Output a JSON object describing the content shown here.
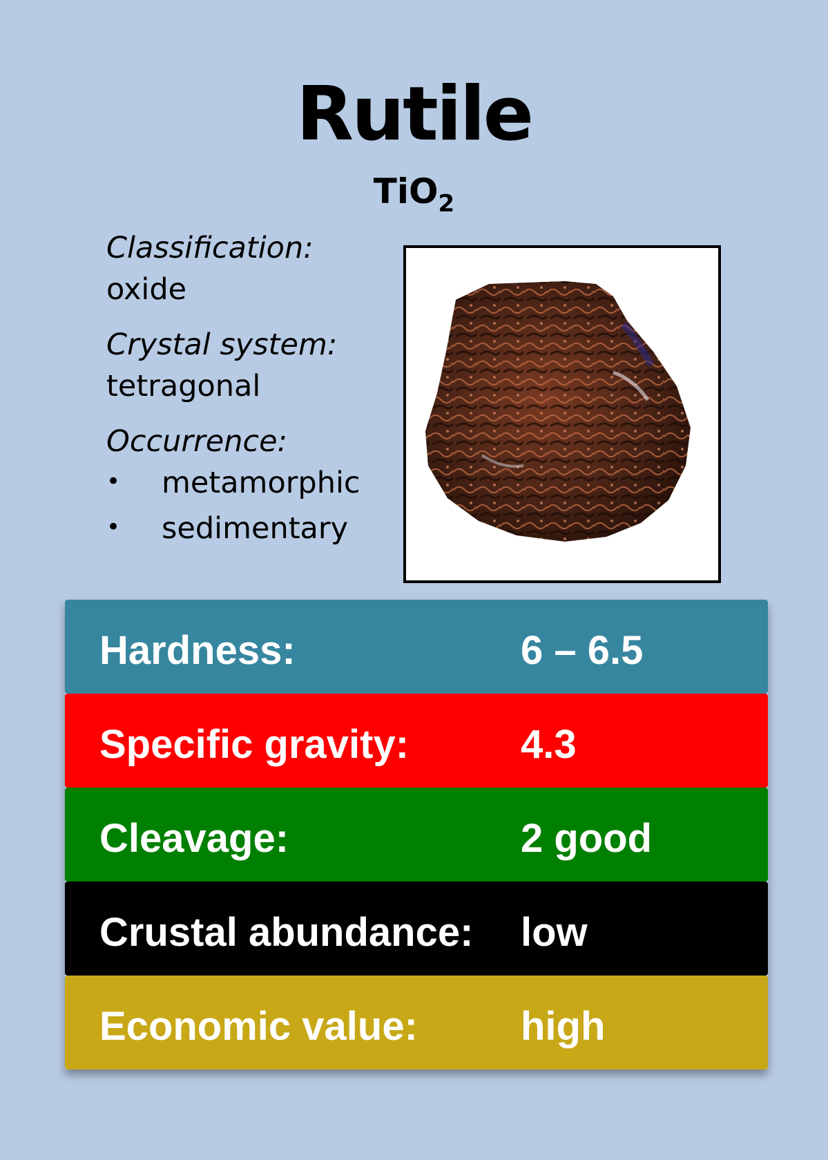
{
  "card": {
    "title": "Rutile",
    "formula": {
      "base": "TiO",
      "subscript": "2"
    }
  },
  "info": {
    "classification_label": "Classification:",
    "classification_value": "oxide",
    "crystal_label": "Crystal system:",
    "crystal_value": "tetragonal",
    "occurrence_label": "Occurrence:",
    "bullet": "•",
    "occurrence_items": [
      "metamorphic",
      "sedimentary"
    ]
  },
  "photo": {
    "icon": "rutile-specimen-image"
  },
  "stats": [
    {
      "label": "Hardness:",
      "value": "6 – 6.5",
      "color": "#3786a0"
    },
    {
      "label": "Specific gravity:",
      "value": "4.3",
      "color": "#ff0000"
    },
    {
      "label": "Cleavage:",
      "value": "2 good",
      "color": "#008000"
    },
    {
      "label": "Crustal abundance:",
      "value": "low",
      "color": "#000000"
    },
    {
      "label": "Economic value:",
      "value": "high",
      "color": "#c8a817"
    }
  ],
  "colors": {
    "background": "#b8cbe4"
  }
}
